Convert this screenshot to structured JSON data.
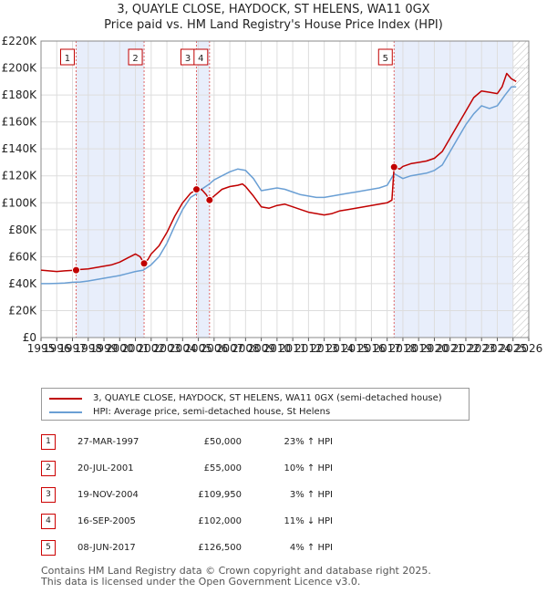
{
  "header": {
    "title_line1": "3, QUAYLE CLOSE, HAYDOCK, ST HELENS, WA11 0GX",
    "title_line2": "Price paid vs. HM Land Registry's House Price Index (HPI)"
  },
  "chart_data": {
    "type": "line",
    "x_range": [
      1995,
      2026
    ],
    "ylim": [
      0,
      220000
    ],
    "y_ticks": [
      {
        "value": 0,
        "label": "£0"
      },
      {
        "value": 20000,
        "label": "£20K"
      },
      {
        "value": 40000,
        "label": "£40K"
      },
      {
        "value": 60000,
        "label": "£60K"
      },
      {
        "value": 80000,
        "label": "£80K"
      },
      {
        "value": 100000,
        "label": "£100K"
      },
      {
        "value": 120000,
        "label": "£120K"
      },
      {
        "value": 140000,
        "label": "£140K"
      },
      {
        "value": 160000,
        "label": "£160K"
      },
      {
        "value": 180000,
        "label": "£180K"
      },
      {
        "value": 200000,
        "label": "£200K"
      },
      {
        "value": 220000,
        "label": "£220K"
      }
    ],
    "x_ticks": [
      1995,
      1996,
      1997,
      1998,
      1999,
      2000,
      2001,
      2002,
      2003,
      2004,
      2005,
      2006,
      2007,
      2008,
      2009,
      2010,
      2011,
      2012,
      2013,
      2014,
      2015,
      2016,
      2017,
      2018,
      2019,
      2020,
      2021,
      2022,
      2023,
      2024,
      2025,
      2026
    ],
    "grid": true,
    "future_hatch_from": 2025.0,
    "series": [
      {
        "name": "3, QUAYLE CLOSE, HAYDOCK, ST HELENS, WA11 0GX (semi-detached house)",
        "color": "#c00000",
        "points": [
          [
            1995.0,
            50000
          ],
          [
            1995.5,
            49500
          ],
          [
            1996.0,
            49000
          ],
          [
            1996.5,
            49500
          ],
          [
            1997.0,
            49800
          ],
          [
            1997.23,
            50000
          ],
          [
            1997.5,
            50500
          ],
          [
            1998.0,
            51000
          ],
          [
            1998.5,
            52000
          ],
          [
            1999.0,
            53000
          ],
          [
            1999.5,
            54000
          ],
          [
            2000.0,
            56000
          ],
          [
            2000.5,
            59000
          ],
          [
            2001.0,
            62000
          ],
          [
            2001.3,
            60000
          ],
          [
            2001.55,
            55000
          ],
          [
            2001.8,
            58000
          ],
          [
            2002.0,
            62000
          ],
          [
            2002.5,
            68000
          ],
          [
            2003.0,
            78000
          ],
          [
            2003.5,
            90000
          ],
          [
            2004.0,
            100000
          ],
          [
            2004.5,
            107000
          ],
          [
            2004.88,
            109950
          ],
          [
            2005.2,
            110000
          ],
          [
            2005.5,
            106000
          ],
          [
            2005.71,
            102000
          ],
          [
            2006.0,
            105000
          ],
          [
            2006.5,
            110000
          ],
          [
            2007.0,
            112000
          ],
          [
            2007.5,
            113000
          ],
          [
            2007.8,
            114000
          ],
          [
            2008.0,
            112000
          ],
          [
            2008.5,
            105000
          ],
          [
            2009.0,
            97000
          ],
          [
            2009.5,
            96000
          ],
          [
            2010.0,
            98000
          ],
          [
            2010.5,
            99000
          ],
          [
            2011.0,
            97000
          ],
          [
            2011.5,
            95000
          ],
          [
            2012.0,
            93000
          ],
          [
            2012.5,
            92000
          ],
          [
            2013.0,
            91000
          ],
          [
            2013.5,
            92000
          ],
          [
            2014.0,
            94000
          ],
          [
            2014.5,
            95000
          ],
          [
            2015.0,
            96000
          ],
          [
            2015.5,
            97000
          ],
          [
            2016.0,
            98000
          ],
          [
            2016.5,
            99000
          ],
          [
            2017.0,
            100000
          ],
          [
            2017.3,
            102000
          ],
          [
            2017.44,
            126500
          ],
          [
            2017.8,
            125000
          ],
          [
            2018.0,
            127000
          ],
          [
            2018.5,
            129000
          ],
          [
            2019.0,
            130000
          ],
          [
            2019.5,
            131000
          ],
          [
            2020.0,
            133000
          ],
          [
            2020.5,
            138000
          ],
          [
            2021.0,
            148000
          ],
          [
            2021.5,
            158000
          ],
          [
            2022.0,
            168000
          ],
          [
            2022.5,
            178000
          ],
          [
            2023.0,
            183000
          ],
          [
            2023.5,
            182000
          ],
          [
            2024.0,
            181000
          ],
          [
            2024.3,
            186000
          ],
          [
            2024.6,
            196000
          ],
          [
            2024.9,
            192000
          ],
          [
            2025.2,
            190000
          ]
        ]
      },
      {
        "name": "HPI: Average price, semi-detached house, St Helens",
        "color": "#6a9fd4",
        "points": [
          [
            1995.0,
            40000
          ],
          [
            1995.5,
            40000
          ],
          [
            1996.0,
            40200
          ],
          [
            1996.5,
            40500
          ],
          [
            1997.0,
            41000
          ],
          [
            1997.5,
            41200
          ],
          [
            1998.0,
            42000
          ],
          [
            1998.5,
            43000
          ],
          [
            1999.0,
            44000
          ],
          [
            1999.5,
            45000
          ],
          [
            2000.0,
            46000
          ],
          [
            2000.5,
            47500
          ],
          [
            2001.0,
            49000
          ],
          [
            2001.5,
            50000
          ],
          [
            2002.0,
            54000
          ],
          [
            2002.5,
            60000
          ],
          [
            2003.0,
            70000
          ],
          [
            2003.5,
            83000
          ],
          [
            2004.0,
            95000
          ],
          [
            2004.5,
            104000
          ],
          [
            2004.88,
            106700
          ],
          [
            2005.2,
            110000
          ],
          [
            2005.71,
            114000
          ],
          [
            2006.0,
            117000
          ],
          [
            2006.5,
            120000
          ],
          [
            2007.0,
            123000
          ],
          [
            2007.5,
            125000
          ],
          [
            2008.0,
            124000
          ],
          [
            2008.5,
            118000
          ],
          [
            2009.0,
            109000
          ],
          [
            2009.5,
            110000
          ],
          [
            2010.0,
            111000
          ],
          [
            2010.5,
            110000
          ],
          [
            2011.0,
            108000
          ],
          [
            2011.5,
            106000
          ],
          [
            2012.0,
            105000
          ],
          [
            2012.5,
            104000
          ],
          [
            2013.0,
            104000
          ],
          [
            2013.5,
            105000
          ],
          [
            2014.0,
            106000
          ],
          [
            2014.5,
            107000
          ],
          [
            2015.0,
            108000
          ],
          [
            2015.5,
            109000
          ],
          [
            2016.0,
            110000
          ],
          [
            2016.5,
            111000
          ],
          [
            2017.0,
            113000
          ],
          [
            2017.44,
            121600
          ],
          [
            2018.0,
            118000
          ],
          [
            2018.5,
            120000
          ],
          [
            2019.0,
            121000
          ],
          [
            2019.5,
            122000
          ],
          [
            2020.0,
            124000
          ],
          [
            2020.5,
            128000
          ],
          [
            2021.0,
            138000
          ],
          [
            2021.5,
            148000
          ],
          [
            2022.0,
            158000
          ],
          [
            2022.5,
            166000
          ],
          [
            2023.0,
            172000
          ],
          [
            2023.5,
            170000
          ],
          [
            2024.0,
            172000
          ],
          [
            2024.5,
            180000
          ],
          [
            2024.9,
            186000
          ],
          [
            2025.2,
            186000
          ]
        ]
      }
    ],
    "sales": [
      {
        "label": "1",
        "year": 1997.23,
        "price": 50000
      },
      {
        "label": "2",
        "year": 2001.55,
        "price": 55000
      },
      {
        "label": "3",
        "year": 2004.88,
        "price": 109950
      },
      {
        "label": "4",
        "year": 2005.71,
        "price": 102000
      },
      {
        "label": "5",
        "year": 2017.44,
        "price": 126500
      }
    ],
    "shaded_periods": [
      [
        1997.23,
        2001.55
      ],
      [
        2004.88,
        2005.71
      ],
      [
        2017.44,
        2025.0
      ]
    ]
  },
  "legend": {
    "property_label": "3, QUAYLE CLOSE, HAYDOCK, ST HELENS, WA11 0GX (semi-detached house)",
    "hpi_label": "HPI: Average price, semi-detached house, St Helens",
    "property_color": "#c00000",
    "hpi_color": "#6a9fd4"
  },
  "sales_table": [
    {
      "num": "1",
      "date": "27-MAR-1997",
      "price": "£50,000",
      "hpi": "23% ↑ HPI"
    },
    {
      "num": "2",
      "date": "20-JUL-2001",
      "price": "£55,000",
      "hpi": "10% ↑ HPI"
    },
    {
      "num": "3",
      "date": "19-NOV-2004",
      "price": "£109,950",
      "hpi": "3% ↑ HPI"
    },
    {
      "num": "4",
      "date": "16-SEP-2005",
      "price": "£102,000",
      "hpi": "11% ↓ HPI"
    },
    {
      "num": "5",
      "date": "08-JUN-2017",
      "price": "£126,500",
      "hpi": "4% ↑ HPI"
    }
  ],
  "footer": {
    "line1": "Contains HM Land Registry data © Crown copyright and database right 2025.",
    "line2": "This data is licensed under the Open Government Licence v3.0."
  }
}
